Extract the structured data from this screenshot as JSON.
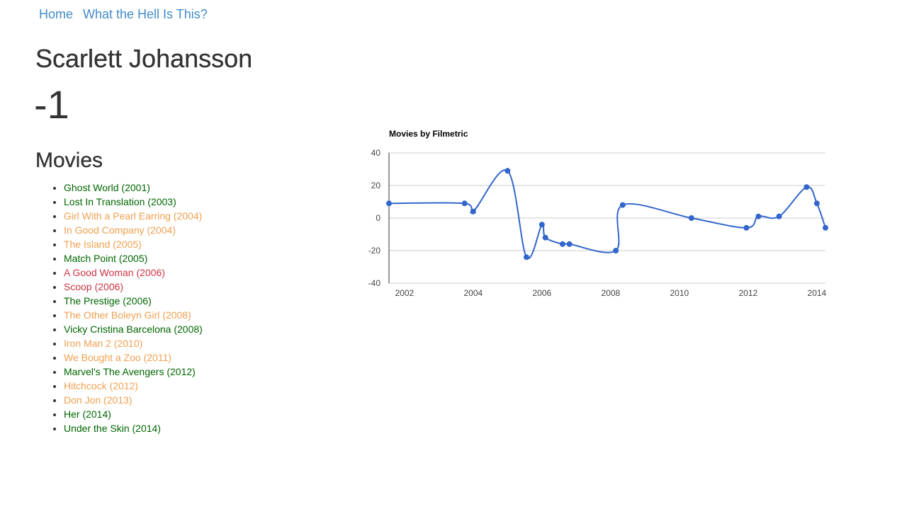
{
  "nav": {
    "home_label": "Home",
    "about_label": "What the Hell Is This?"
  },
  "actor": {
    "name": "Scarlett Johansson",
    "score": "-1"
  },
  "movies": {
    "heading": "Movies",
    "items": [
      {
        "label": "Ghost World (2001)",
        "rating": "good"
      },
      {
        "label": "Lost In Translation (2003)",
        "rating": "good"
      },
      {
        "label": "Girl With a Pearl Earring (2004)",
        "rating": "ok"
      },
      {
        "label": "In Good Company (2004)",
        "rating": "ok"
      },
      {
        "label": "The Island (2005)",
        "rating": "ok"
      },
      {
        "label": "Match Point (2005)",
        "rating": "good"
      },
      {
        "label": "A Good Woman (2006)",
        "rating": "bad"
      },
      {
        "label": "Scoop (2006)",
        "rating": "bad"
      },
      {
        "label": "The Prestige (2006)",
        "rating": "good"
      },
      {
        "label": "The Other Boleyn Girl (2008)",
        "rating": "ok"
      },
      {
        "label": "Vicky Cristina Barcelona (2008)",
        "rating": "good"
      },
      {
        "label": "Iron Man 2 (2010)",
        "rating": "ok"
      },
      {
        "label": "We Bought a Zoo (2011)",
        "rating": "ok"
      },
      {
        "label": "Marvel's The Avengers (2012)",
        "rating": "good"
      },
      {
        "label": "Hitchcock (2012)",
        "rating": "ok"
      },
      {
        "label": "Don Jon (2013)",
        "rating": "ok"
      },
      {
        "label": "Her (2014)",
        "rating": "good"
      },
      {
        "label": "Under the Skin (2014)",
        "rating": "good"
      }
    ]
  },
  "colors": {
    "link": "#428bca",
    "good": "#006600",
    "ok": "#f0a050",
    "bad": "#cc3344",
    "series": "#3366cc"
  },
  "chart_data": {
    "type": "line",
    "title": "Movies by Filmetric",
    "xlabel": "",
    "ylabel": "",
    "xlim": [
      2001.55,
      2014.25
    ],
    "ylim": [
      -40,
      40
    ],
    "x_ticks": [
      "2002",
      "2004",
      "2006",
      "2008",
      "2010",
      "2012",
      "2014"
    ],
    "y_ticks": [
      "40",
      "20",
      "0",
      "-20",
      "-40"
    ],
    "grid": true,
    "legend": "none",
    "smooth": true,
    "series": [
      {
        "points": [
          [
            2001.55,
            9
          ],
          [
            2003.75,
            9
          ],
          [
            2004.0,
            4
          ],
          [
            2005.0,
            29
          ],
          [
            2005.55,
            -24
          ],
          [
            2006.0,
            -4
          ],
          [
            2006.1,
            -12
          ],
          [
            2006.6,
            -16
          ],
          [
            2006.8,
            -16
          ],
          [
            2008.15,
            -20
          ],
          [
            2008.35,
            8
          ],
          [
            2010.35,
            0
          ],
          [
            2011.95,
            -6
          ],
          [
            2012.3,
            1
          ],
          [
            2012.9,
            1
          ],
          [
            2013.7,
            19
          ],
          [
            2014.0,
            9
          ],
          [
            2014.25,
            -6
          ]
        ]
      }
    ]
  }
}
